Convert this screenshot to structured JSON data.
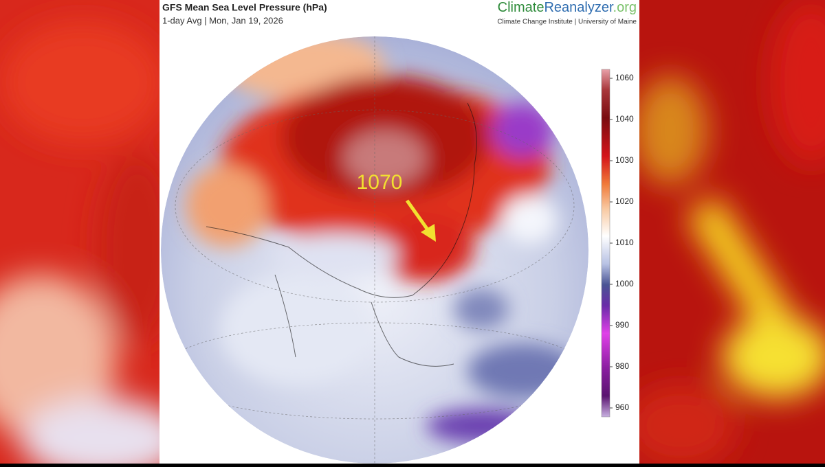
{
  "header": {
    "title": "GFS Mean Sea Level Pressure (hPa)",
    "subtitle": "1-day Avg | Mon, Jan 19, 2026"
  },
  "brand": {
    "parts": [
      "Climate",
      "Reanalyzer",
      ".org"
    ],
    "institute": "Climate Change Institute | University of Maine"
  },
  "annotation": {
    "label": "1070"
  },
  "colorbar": {
    "ticks": [
      1060,
      1040,
      1030,
      1020,
      1010,
      1000,
      990,
      980,
      960
    ]
  }
}
